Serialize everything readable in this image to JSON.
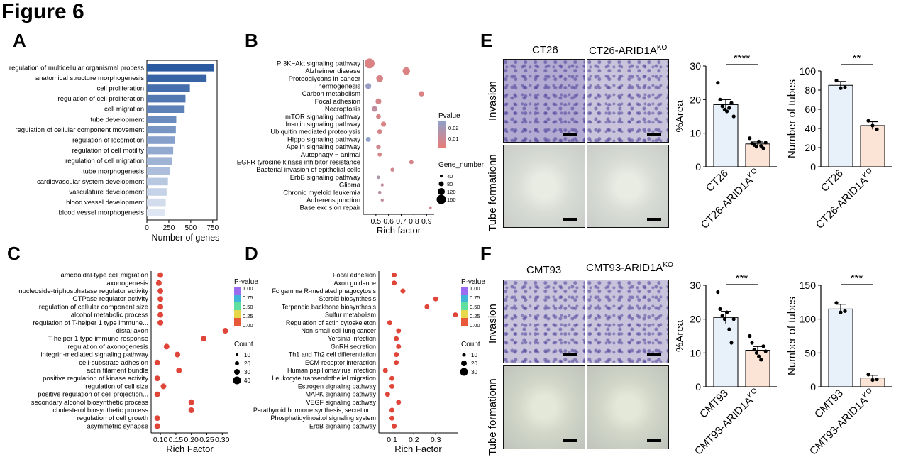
{
  "figure_title": "Figure 6",
  "panel_labels": [
    "A",
    "B",
    "C",
    "D",
    "E",
    "F"
  ],
  "colors": {
    "bar_dark": "#2b5aa0",
    "bar_light": "#dfe6f3",
    "dot_red": "#e0453a",
    "pval_high": "#8ea2cc",
    "pval_low": "#e77d78",
    "bar_ct": "#e8f1fa",
    "bar_ko": "#fbe4d6"
  },
  "chart_data": [
    {
      "panel": "A",
      "type": "bar",
      "orientation": "horizontal",
      "categories": [
        "regulation of multicellular organismal process",
        "anatomical structure morphogenesis",
        "cell proliferation",
        "regulation of cell proliferation",
        "cell migration",
        "tube development",
        "regulation of cellular component movement",
        "regulation of locomotion",
        "regulation of cell motility",
        "regulation of cell migration",
        "tube morphogenesis",
        "cardiovascular system development",
        "vasculature development",
        "blood vessel development",
        "blood vessel morphogenesis"
      ],
      "values": [
        760,
        680,
        490,
        440,
        430,
        335,
        330,
        320,
        300,
        290,
        265,
        240,
        225,
        215,
        205
      ],
      "xlabel": "Number of genes",
      "xticks": [
        0,
        250,
        500,
        750
      ],
      "xlim": [
        0,
        800
      ]
    },
    {
      "panel": "B",
      "type": "scatter",
      "xlabel": "Rich factor",
      "categories": [
        "PI3K−Akt signaling pathway",
        "Alzheimer disease",
        "Proteoglycans in cancer",
        "Thermogenesis",
        "Carbon metabolism",
        "Focal adhesion",
        "Necroptosis",
        "mTOR signaling pathway",
        "Insulin signaling pathway",
        "Ubiquitin mediated proteolysis",
        "Hippo signaling pathway",
        "Apelin signaling pathway",
        "Autophagy − animal",
        "EGFR tyrosine kinase inhibitor resistance",
        "Bacterial invasion of epithelial cells",
        "ErbB signaling pathway",
        "Glioma",
        "Chronic myeloid leukemia",
        "Adherens junction",
        "Base excision repair"
      ],
      "x": [
        0.45,
        0.74,
        0.53,
        0.44,
        0.86,
        0.52,
        0.49,
        0.52,
        0.56,
        0.53,
        0.44,
        0.52,
        0.53,
        0.78,
        0.63,
        0.52,
        0.55,
        0.53,
        0.55,
        0.93
      ],
      "gene_number": [
        165,
        120,
        110,
        90,
        80,
        90,
        85,
        70,
        75,
        75,
        70,
        65,
        60,
        60,
        55,
        45,
        40,
        45,
        40,
        35
      ],
      "pvalue": [
        0.004,
        0.004,
        0.005,
        0.025,
        0.004,
        0.006,
        0.012,
        0.006,
        0.004,
        0.006,
        0.028,
        0.008,
        0.006,
        0.006,
        0.008,
        0.018,
        0.012,
        0.015,
        0.012,
        0.008
      ],
      "xticks": [
        "0.5",
        "0.6",
        "0.7",
        "0.8",
        "0.9"
      ],
      "xlim": [
        0.4,
        0.96
      ],
      "legend_color_title": "Pvalue",
      "legend_color_ticks": [
        "0.02",
        "0.01"
      ],
      "legend_size_title": "Gene_number",
      "legend_size_ticks": [
        "40",
        "80",
        "120",
        "160"
      ]
    },
    {
      "panel": "C",
      "type": "scatter",
      "xlabel": "Rich Factor",
      "categories": [
        "ameboidal-type cell migration",
        "axonogenesis",
        "nucleoside-triphosphatase regulator activity",
        "GTPase regulator activity",
        "regulation of cellular component size",
        "alcohol metabolic process",
        "regulation of T-helper 1 type immune...",
        "distal axon",
        "T-helper 1 type immune response",
        "regulation of axonogenesis",
        "integrin-mediated signaling pathway",
        "cell-substrate adhesion",
        "actin filament bundle",
        "positive regulation of kinase activity",
        "regulation of cell size",
        "positive regulation of cell projection...",
        "secondary alcohol biosynthetic process",
        "cholesterol biosynthetic process",
        "regulation of cell growth",
        "asymmetric synapse"
      ],
      "x": [
        0.1,
        0.095,
        0.1,
        0.1,
        0.1,
        0.1,
        0.1,
        0.31,
        0.24,
        0.12,
        0.155,
        0.09,
        0.16,
        0.09,
        0.11,
        0.09,
        0.2,
        0.2,
        0.09,
        0.09
      ],
      "xticks": [
        "0.10",
        "0.15",
        "0.20",
        "0.25",
        "0.30"
      ],
      "xlim": [
        0.07,
        0.32
      ],
      "legend_color_title": "P-value",
      "legend_color_ticks": [
        "1.00",
        "0.75",
        "0.50",
        "0.25",
        "0.00"
      ],
      "legend_size_title": "Count",
      "legend_size_ticks": [
        "10",
        "20",
        "30",
        "40"
      ]
    },
    {
      "panel": "D",
      "type": "scatter",
      "xlabel": "Rich Factor",
      "categories": [
        "Focal adhesion",
        "Axon guidance",
        "Fc gamma R-mediated phagocytosis",
        "Steroid biosynthesis",
        "Terpenoid backbone biosynthesis",
        "Sulfur metabolism",
        "Regulation of actin cytoskeleton",
        "Non-small cell lung cancer",
        "Yersinia infection",
        "GnRH secretion",
        "Th1 and Th2 cell differentiation",
        "ECM-receptor interaction",
        "Human papillomavirus infection",
        "Leukocyte transendothelial migration",
        "Estrogen signaling pathway",
        "MAPK signaling pathway",
        "VEGF signaling pathway",
        "Parathyroid hormone synthesis, secretion...",
        "Phosphatidylinositol signaling system",
        "ErbB signaling pathway"
      ],
      "x": [
        0.11,
        0.11,
        0.15,
        0.3,
        0.26,
        0.39,
        0.09,
        0.13,
        0.12,
        0.13,
        0.12,
        0.12,
        0.07,
        0.1,
        0.1,
        0.08,
        0.13,
        0.1,
        0.1,
        0.11
      ],
      "xticks": [
        "0.1",
        "0.2",
        "0.3"
      ],
      "xlim": [
        0.04,
        0.4
      ],
      "legend_color_title": "P-value",
      "legend_color_ticks": [
        "1.00",
        "0.75",
        "0.50",
        "0.25",
        "0.00"
      ],
      "legend_size_title": "Count",
      "legend_size_ticks": [
        "10",
        "20",
        "30"
      ]
    },
    {
      "panel": "E1",
      "type": "bar",
      "categories": [
        "CT26",
        "CT26-ARID1AKO"
      ],
      "values": [
        18.5,
        6.8
      ],
      "errors": [
        1.5,
        0.6
      ],
      "points": [
        [
          25,
          20,
          18,
          17,
          16.5,
          17.5,
          19,
          15
        ],
        [
          8.5,
          7,
          6.5,
          6,
          7.5,
          6.2,
          5.5,
          7.2
        ]
      ],
      "ylabel": "%Area",
      "ylim": [
        0,
        30
      ],
      "yticks": [
        "0",
        "10",
        "20",
        "30"
      ],
      "significance": "****"
    },
    {
      "panel": "E2",
      "type": "bar",
      "categories": [
        "CT26",
        "CT26-ARID1AKO"
      ],
      "values": [
        85,
        43
      ],
      "errors": [
        4,
        4
      ],
      "points": [
        [
          90,
          82,
          83
        ],
        [
          48,
          43,
          39
        ]
      ],
      "ylabel": "Number of tubes",
      "ylim": [
        0,
        100
      ],
      "yticks": [
        "0",
        "20",
        "40",
        "60",
        "80",
        "100"
      ],
      "significance": "**"
    },
    {
      "panel": "F1",
      "type": "bar",
      "categories": [
        "CMT93",
        "CMT93-ARID1AKO"
      ],
      "values": [
        20.5,
        10.8
      ],
      "errors": [
        1.8,
        1.1
      ],
      "points": [
        [
          28,
          23,
          21,
          20,
          22,
          17,
          13,
          20
        ],
        [
          15,
          13,
          11,
          10,
          9,
          8,
          12,
          10.5
        ]
      ],
      "ylabel": "%Area",
      "ylim": [
        0,
        30
      ],
      "yticks": [
        "0",
        "10",
        "20",
        "30"
      ],
      "significance": "***"
    },
    {
      "panel": "F2",
      "type": "bar",
      "categories": [
        "CMT93",
        "CMT93-ARID1AKO"
      ],
      "values": [
        115,
        13
      ],
      "errors": [
        7,
        4
      ],
      "points": [
        [
          124,
          110,
          112
        ],
        [
          18,
          10,
          11
        ]
      ],
      "ylabel": "Number of tubes",
      "ylim": [
        0,
        150
      ],
      "yticks": [
        "0",
        "50",
        "100",
        "150"
      ],
      "significance": "***"
    }
  ],
  "micro": {
    "e_titles": [
      "CT26",
      "CT26-ARID1A",
      "KO"
    ],
    "f_titles": [
      "CMT93",
      "CMT93-ARID1A",
      "KO"
    ],
    "row_labels": [
      "Invasion",
      "Tube formationn"
    ]
  }
}
